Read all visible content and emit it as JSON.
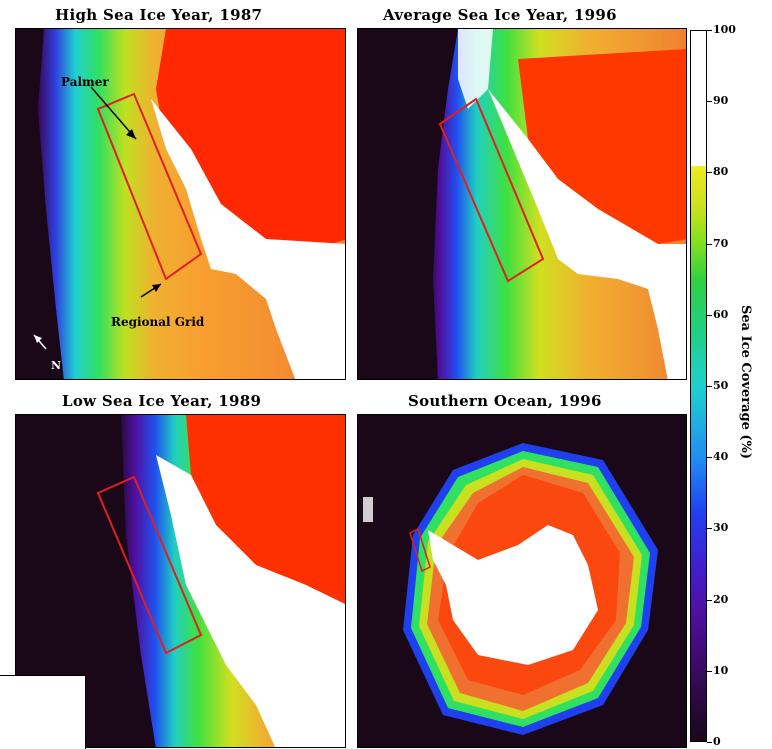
{
  "panels": [
    {
      "title": "High Sea Ice Year, 1987"
    },
    {
      "title": "Average Sea Ice Year, 1996"
    },
    {
      "title": "Low Sea Ice Year, 1989"
    },
    {
      "title": "Southern Ocean, 1996"
    }
  ],
  "annotations": {
    "palmer": "Palmer",
    "regional_grid": "Regional Grid",
    "north": "N"
  },
  "colorbar": {
    "label": "Sea Ice Coverage (%)",
    "ticks": [
      "100",
      "90",
      "80",
      "70",
      "60",
      "50",
      "40",
      "30",
      "20",
      "10",
      "0"
    ],
    "min": 0,
    "max": 100
  },
  "colors": {
    "land_ice": "#ffffff",
    "open_ocean": "#1a0818",
    "grid_outline": "#e02020"
  }
}
